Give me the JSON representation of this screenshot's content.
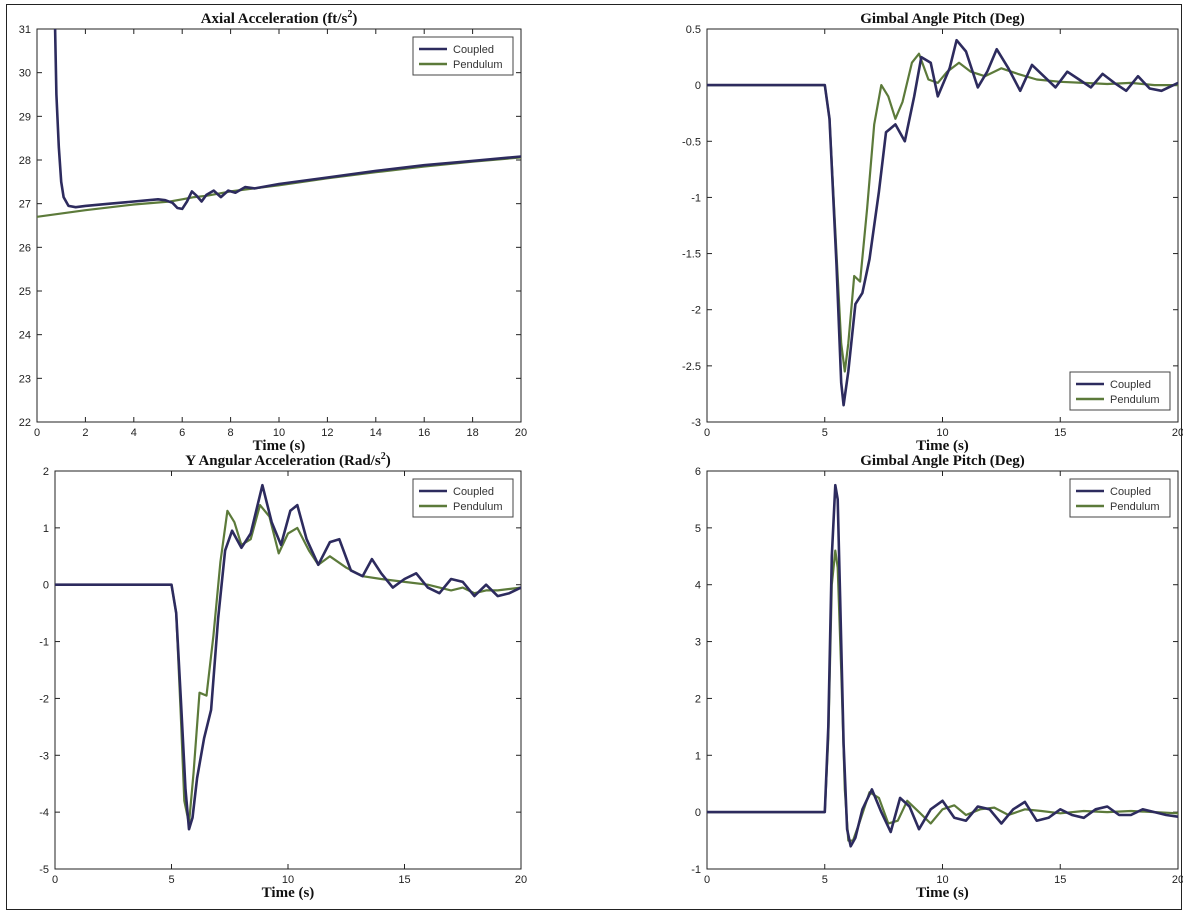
{
  "chart_data": [
    {
      "type": "line",
      "title": "Axial Acceleration (ft/s",
      "title_sup": "2",
      "title_end": ")",
      "xlabel": "Time (s)",
      "ylabel": "",
      "xlim": [
        0,
        20
      ],
      "ylim": [
        22,
        31
      ],
      "xticks": [
        0,
        2,
        4,
        6,
        8,
        10,
        12,
        14,
        16,
        18,
        20
      ],
      "yticks": [
        22,
        23,
        24,
        25,
        26,
        27,
        28,
        29,
        30,
        31
      ],
      "legend_position": "top-right",
      "grid": false,
      "series": [
        {
          "name": "Coupled",
          "color": "#2d2b5e",
          "x": [
            0.75,
            0.8,
            0.9,
            1.0,
            1.1,
            1.3,
            1.6,
            2,
            3,
            4,
            5,
            5.3,
            5.6,
            5.8,
            6.0,
            6.2,
            6.4,
            6.6,
            6.8,
            7.0,
            7.3,
            7.6,
            7.9,
            8.2,
            8.6,
            9,
            10,
            12,
            14,
            16,
            18,
            20
          ],
          "y": [
            31,
            29.5,
            28.3,
            27.5,
            27.15,
            26.95,
            26.92,
            26.95,
            27.0,
            27.05,
            27.1,
            27.08,
            27.02,
            26.9,
            26.88,
            27.05,
            27.28,
            27.18,
            27.05,
            27.2,
            27.3,
            27.15,
            27.3,
            27.25,
            27.38,
            27.35,
            27.45,
            27.6,
            27.75,
            27.88,
            27.98,
            28.08
          ]
        },
        {
          "name": "Pendulum",
          "color": "#5c7a3a",
          "x": [
            0,
            2,
            4,
            5.5,
            6,
            6.5,
            7,
            8,
            10,
            12,
            14,
            16,
            18,
            20
          ],
          "y": [
            26.7,
            26.85,
            26.98,
            27.05,
            27.1,
            27.15,
            27.18,
            27.28,
            27.42,
            27.58,
            27.72,
            27.85,
            27.96,
            28.06
          ]
        }
      ]
    },
    {
      "type": "line",
      "title": "Gimbal Angle Pitch (Deg)",
      "xlabel": "Time (s)",
      "ylabel": "",
      "xlim": [
        0,
        20
      ],
      "ylim": [
        -3,
        0.5
      ],
      "xticks": [
        0,
        5,
        10,
        15,
        20
      ],
      "yticks": [
        -3,
        -2.5,
        -2,
        -1.5,
        -1,
        -0.5,
        0,
        0.5
      ],
      "legend_position": "bottom-right",
      "grid": false,
      "series": [
        {
          "name": "Coupled",
          "color": "#2d2b5e",
          "x": [
            0,
            5,
            5.2,
            5.5,
            5.7,
            5.8,
            6.0,
            6.3,
            6.6,
            6.9,
            7.3,
            7.6,
            8.0,
            8.4,
            8.8,
            9.1,
            9.5,
            9.8,
            10.3,
            10.6,
            11.0,
            11.5,
            11.9,
            12.3,
            12.8,
            13.3,
            13.8,
            14.3,
            14.8,
            15.3,
            15.8,
            16.3,
            16.8,
            17.3,
            17.8,
            18.3,
            18.8,
            19.3,
            20
          ],
          "y": [
            0,
            0,
            -0.3,
            -1.6,
            -2.65,
            -2.85,
            -2.55,
            -1.95,
            -1.85,
            -1.55,
            -0.95,
            -0.42,
            -0.35,
            -0.5,
            -0.1,
            0.25,
            0.2,
            -0.1,
            0.15,
            0.4,
            0.3,
            -0.02,
            0.12,
            0.32,
            0.15,
            -0.05,
            0.18,
            0.08,
            -0.02,
            0.12,
            0.05,
            -0.02,
            0.1,
            0.02,
            -0.05,
            0.08,
            -0.03,
            -0.05,
            0.02
          ]
        },
        {
          "name": "Pendulum",
          "color": "#5c7a3a",
          "x": [
            0,
            5,
            5.2,
            5.5,
            5.7,
            5.85,
            6.0,
            6.25,
            6.5,
            6.8,
            7.1,
            7.4,
            7.7,
            8.0,
            8.3,
            8.7,
            9.0,
            9.4,
            9.8,
            10.2,
            10.7,
            11.2,
            11.8,
            12.5,
            13.2,
            14,
            15,
            16,
            17,
            18,
            19,
            20
          ],
          "y": [
            0,
            0,
            -0.3,
            -1.5,
            -2.3,
            -2.55,
            -2.3,
            -1.7,
            -1.75,
            -1.1,
            -0.35,
            0.0,
            -0.1,
            -0.3,
            -0.15,
            0.2,
            0.28,
            0.05,
            0.02,
            0.12,
            0.2,
            0.12,
            0.08,
            0.15,
            0.1,
            0.05,
            0.03,
            0.02,
            0.01,
            0.02,
            0.0,
            0.0
          ]
        }
      ]
    },
    {
      "type": "line",
      "title": "Y Angular Acceleration (Rad/s",
      "title_sup": "2",
      "title_end": ")",
      "xlabel": "Time (s)",
      "ylabel": "",
      "xlim": [
        0,
        20
      ],
      "ylim": [
        -5,
        2
      ],
      "xticks": [
        0,
        5,
        10,
        15,
        20
      ],
      "yticks": [
        -5,
        -4,
        -3,
        -2,
        -1,
        0,
        1,
        2
      ],
      "legend_position": "top-right",
      "grid": false,
      "series": [
        {
          "name": "Coupled",
          "color": "#2d2b5e",
          "x": [
            0,
            5,
            5.2,
            5.4,
            5.6,
            5.75,
            5.9,
            6.1,
            6.4,
            6.7,
            7.0,
            7.3,
            7.6,
            8.0,
            8.4,
            8.9,
            9.3,
            9.7,
            10.1,
            10.4,
            10.8,
            11.3,
            11.8,
            12.2,
            12.7,
            13.2,
            13.6,
            14.0,
            14.5,
            15.0,
            15.5,
            16.0,
            16.5,
            17.0,
            17.5,
            18.0,
            18.5,
            19.0,
            19.5,
            20
          ],
          "y": [
            0,
            0,
            -0.5,
            -2.0,
            -3.6,
            -4.3,
            -4.1,
            -3.4,
            -2.7,
            -2.2,
            -0.6,
            0.6,
            0.95,
            0.65,
            0.9,
            1.75,
            1.1,
            0.7,
            1.3,
            1.4,
            0.8,
            0.35,
            0.75,
            0.8,
            0.25,
            0.15,
            0.45,
            0.2,
            -0.05,
            0.1,
            0.2,
            -0.05,
            -0.15,
            0.1,
            0.05,
            -0.2,
            0.0,
            -0.2,
            -0.15,
            -0.05
          ]
        },
        {
          "name": "Pendulum",
          "color": "#5c7a3a",
          "x": [
            0,
            5,
            5.2,
            5.4,
            5.55,
            5.75,
            5.95,
            6.2,
            6.5,
            6.8,
            7.1,
            7.4,
            7.7,
            8.0,
            8.4,
            8.8,
            9.2,
            9.6,
            10.0,
            10.4,
            10.9,
            11.3,
            11.8,
            12.5,
            13.2,
            14,
            15,
            16,
            17,
            17.5,
            18,
            18.5,
            19,
            20
          ],
          "y": [
            0,
            0,
            -0.5,
            -2.3,
            -3.8,
            -4.2,
            -3.3,
            -1.9,
            -1.95,
            -0.9,
            0.4,
            1.3,
            1.1,
            0.7,
            0.8,
            1.4,
            1.2,
            0.55,
            0.9,
            1.0,
            0.6,
            0.35,
            0.5,
            0.3,
            0.15,
            0.1,
            0.05,
            0.0,
            -0.1,
            -0.05,
            -0.15,
            -0.1,
            -0.1,
            -0.05
          ]
        }
      ]
    },
    {
      "type": "line",
      "title": "Gimbal Angle Pitch (Deg)",
      "xlabel": "Time (s)",
      "ylabel": "",
      "xlim": [
        0,
        20
      ],
      "ylim": [
        -1,
        6
      ],
      "xticks": [
        0,
        5,
        10,
        15,
        20
      ],
      "yticks": [
        -1,
        0,
        1,
        2,
        3,
        4,
        5,
        6
      ],
      "legend_position": "top-right",
      "grid": false,
      "series": [
        {
          "name": "Coupled",
          "color": "#2d2b5e",
          "x": [
            0,
            5,
            5.15,
            5.3,
            5.45,
            5.55,
            5.65,
            5.8,
            5.95,
            6.1,
            6.3,
            6.6,
            7.0,
            7.4,
            7.8,
            8.2,
            8.6,
            9.0,
            9.5,
            10.0,
            10.5,
            11.0,
            11.5,
            12.0,
            12.5,
            13.0,
            13.5,
            14.0,
            14.5,
            15.0,
            15.5,
            16.0,
            16.5,
            17.0,
            17.5,
            18.0,
            18.5,
            19.0,
            19.5,
            20
          ],
          "y": [
            0,
            0,
            1.5,
            4.5,
            5.75,
            5.5,
            3.8,
            1.2,
            -0.3,
            -0.6,
            -0.45,
            0.05,
            0.4,
            0.0,
            -0.35,
            0.25,
            0.1,
            -0.3,
            0.05,
            0.2,
            -0.1,
            -0.15,
            0.1,
            0.05,
            -0.2,
            0.05,
            0.18,
            -0.15,
            -0.1,
            0.05,
            -0.05,
            -0.1,
            0.05,
            0.1,
            -0.05,
            -0.05,
            0.05,
            0.0,
            -0.05,
            -0.08
          ]
        },
        {
          "name": "Pendulum",
          "color": "#5c7a3a",
          "x": [
            0,
            5,
            5.15,
            5.3,
            5.45,
            5.55,
            5.7,
            5.85,
            6.0,
            6.2,
            6.5,
            6.9,
            7.3,
            7.7,
            8.1,
            8.5,
            9.0,
            9.5,
            10.0,
            10.5,
            11.0,
            11.6,
            12.2,
            12.8,
            13.5,
            14.2,
            15.0,
            16.0,
            17.0,
            18.0,
            19.0,
            20
          ],
          "y": [
            0,
            0,
            1.3,
            4.0,
            4.6,
            4.3,
            2.5,
            0.4,
            -0.5,
            -0.5,
            -0.15,
            0.35,
            0.25,
            -0.2,
            -0.15,
            0.2,
            0.0,
            -0.2,
            0.05,
            0.12,
            -0.05,
            0.05,
            0.08,
            -0.05,
            0.05,
            0.02,
            -0.02,
            0.02,
            0.0,
            0.02,
            0.0,
            -0.02
          ]
        }
      ]
    }
  ]
}
